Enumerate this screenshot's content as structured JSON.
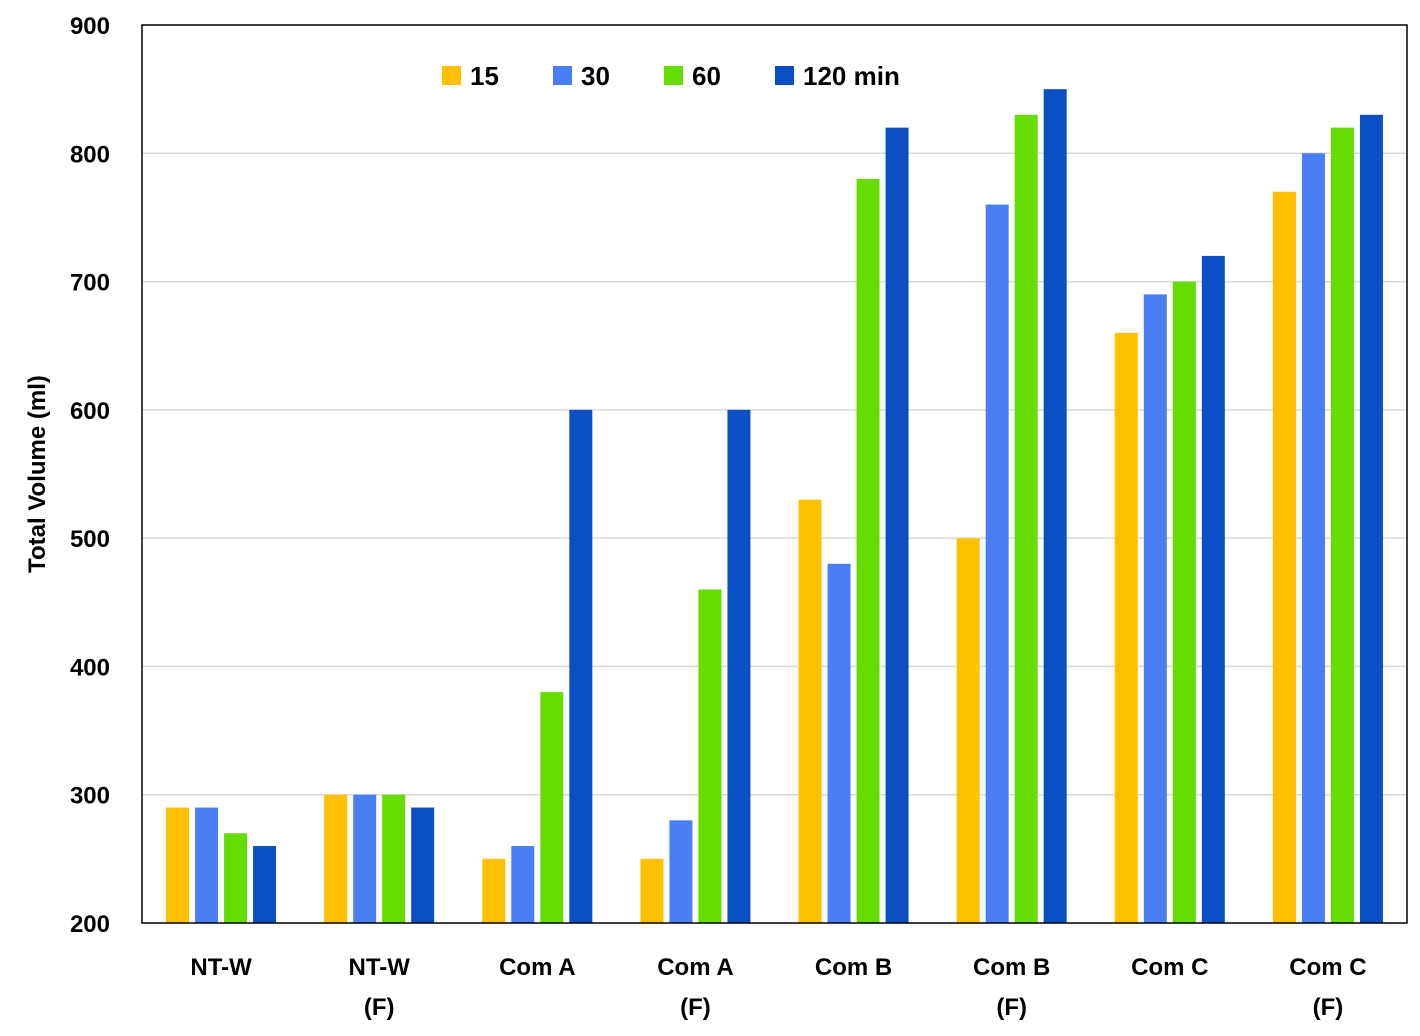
{
  "chart_data": {
    "type": "bar",
    "title": "",
    "xlabel": "",
    "ylabel": "Total Volume (ml)",
    "ylim": [
      200,
      900
    ],
    "yticks": [
      200,
      300,
      400,
      500,
      600,
      700,
      800,
      900
    ],
    "grid": true,
    "legend_position": "top",
    "categories": [
      [
        "NT-W"
      ],
      [
        "NT-W",
        "(F)"
      ],
      [
        "Com A"
      ],
      [
        "Com A",
        "(F)"
      ],
      [
        "Com B"
      ],
      [
        "Com B",
        "(F)"
      ],
      [
        "Com C"
      ],
      [
        "Com C",
        "(F)"
      ]
    ],
    "series": [
      {
        "name": "15",
        "color": "#FFC000",
        "values": [
          290,
          300,
          250,
          250,
          530,
          500,
          660,
          770
        ]
      },
      {
        "name": "30",
        "color": "#4A7EF5",
        "values": [
          290,
          300,
          260,
          280,
          480,
          760,
          690,
          800
        ]
      },
      {
        "name": "60",
        "color": "#66DD00",
        "values": [
          270,
          300,
          380,
          460,
          780,
          830,
          700,
          820
        ]
      },
      {
        "name": "120 min",
        "color": "#0B4FC4",
        "values": [
          260,
          290,
          600,
          600,
          820,
          850,
          720,
          830
        ]
      }
    ]
  }
}
